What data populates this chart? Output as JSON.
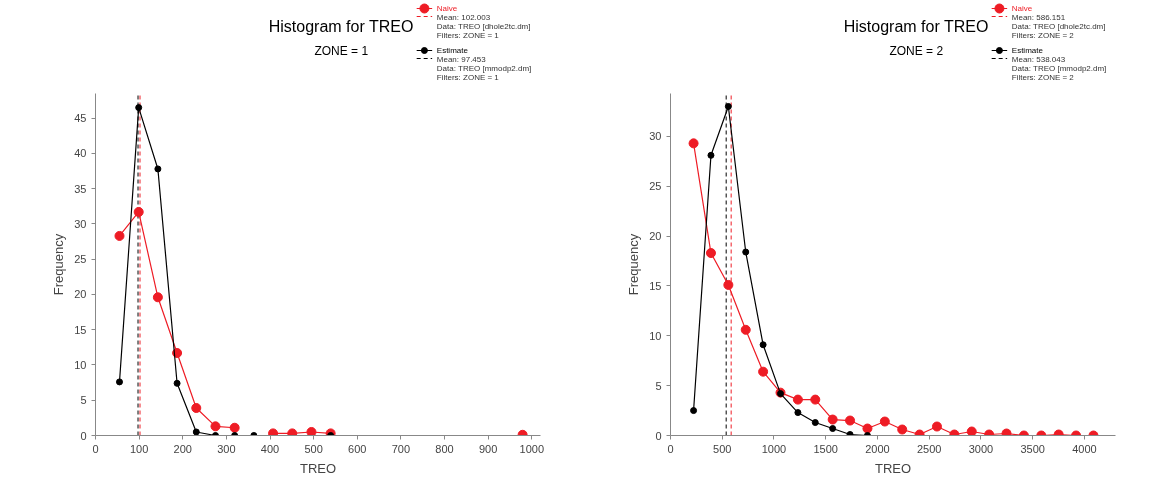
{
  "chart_data": [
    {
      "type": "line",
      "title": "Histogram for TREO",
      "subtitle": "ZONE = 1",
      "xlabel": "TREO",
      "ylabel": "Frequency",
      "x": [
        55,
        99,
        143,
        187,
        231,
        275,
        319,
        363,
        407,
        451,
        495,
        539,
        583,
        627,
        671,
        715,
        759,
        803,
        847,
        891,
        935,
        979
      ],
      "series": [
        {
          "name": "Naive",
          "color": "#ee1c25",
          "values": [
            28.3,
            31.7,
            19.6,
            11.7,
            3.9,
            1.3,
            1.1,
            null,
            0.3,
            0.3,
            0.5,
            0.3,
            null,
            null,
            null,
            null,
            null,
            null,
            null,
            null,
            null,
            0.1
          ]
        },
        {
          "name": "Estimate",
          "color": "#000000",
          "values": [
            7.6,
            46.5,
            37.8,
            7.4,
            0.5,
            0,
            0,
            0,
            null,
            null,
            null,
            0,
            null,
            null,
            null,
            null,
            null,
            null,
            null,
            null,
            null,
            null
          ]
        }
      ],
      "ref_lines": [
        {
          "axis": "x",
          "value": 102.003,
          "label": "Mean: 102.003",
          "color": "#ee1c25",
          "line_style": "dashed"
        },
        {
          "axis": "x",
          "value": 97.453,
          "label": "Mean: 97.453",
          "color": "#000000",
          "line_style": "dashed"
        }
      ],
      "annotations": [
        "Data: TREO [dhole2tc.dm]",
        "Filters: ZONE = 1",
        "Data: TREO [mmodp2.dm]",
        "Filters: ZONE = 1"
      ],
      "xlim": [
        0,
        1020
      ],
      "ylim": [
        0,
        48.5
      ],
      "xticks": [
        0,
        100,
        200,
        300,
        400,
        500,
        600,
        700,
        800,
        900,
        1000
      ],
      "yticks": [
        0,
        5,
        10,
        15,
        20,
        25,
        30,
        35,
        40,
        45
      ],
      "grid": false,
      "legend": "top right",
      "marker": "circle",
      "line_style": "solid"
    },
    {
      "type": "line",
      "title": "Histogram for TREO",
      "subtitle": "ZONE = 2",
      "xlabel": "TREO",
      "ylabel": "Frequency",
      "x": [
        223,
        391,
        559,
        727,
        895,
        1063,
        1231,
        1399,
        1567,
        1735,
        1903,
        2071,
        2239,
        2407,
        2575,
        2743,
        2911,
        3079,
        3247,
        3415,
        3583,
        3751,
        3919,
        4087
      ],
      "series": [
        {
          "name": "Naive",
          "color": "#ee1c25",
          "values": [
            29.3,
            18.3,
            15.1,
            10.6,
            6.4,
            4.3,
            3.6,
            3.6,
            1.6,
            1.5,
            0.7,
            1.4,
            0.6,
            0.1,
            0.9,
            0.1,
            0.4,
            0.1,
            0.2,
            0,
            0,
            0.1,
            0,
            0
          ]
        },
        {
          "name": "Estimate",
          "color": "#000000",
          "values": [
            2.5,
            28.1,
            33,
            18.4,
            9.1,
            4.2,
            2.3,
            1.3,
            0.7,
            0.1,
            0,
            null,
            null,
            null,
            null,
            null,
            null,
            null,
            null,
            null,
            null,
            null,
            null,
            null
          ]
        }
      ],
      "ref_lines": [
        {
          "axis": "x",
          "value": 586.151,
          "label": "Mean: 586.151",
          "color": "#ee1c25",
          "line_style": "dashed"
        },
        {
          "axis": "x",
          "value": 538.043,
          "label": "Mean: 538.043",
          "color": "#000000",
          "line_style": "dashed"
        }
      ],
      "annotations": [
        "Data: TREO [dhole2tc.dm]",
        "Filters: ZONE = 2",
        "Data: TREO [mmodp2.dm]",
        "Filters: ZONE = 2"
      ],
      "xlim": [
        0,
        4300
      ],
      "ylim": [
        0,
        34.3
      ],
      "xticks": [
        0,
        500,
        1000,
        1500,
        2000,
        2500,
        3000,
        3500,
        4000
      ],
      "yticks": [
        0,
        5,
        10,
        15,
        20,
        25,
        30
      ],
      "grid": false,
      "legend": "top right",
      "marker": "circle",
      "line_style": "solid"
    }
  ]
}
